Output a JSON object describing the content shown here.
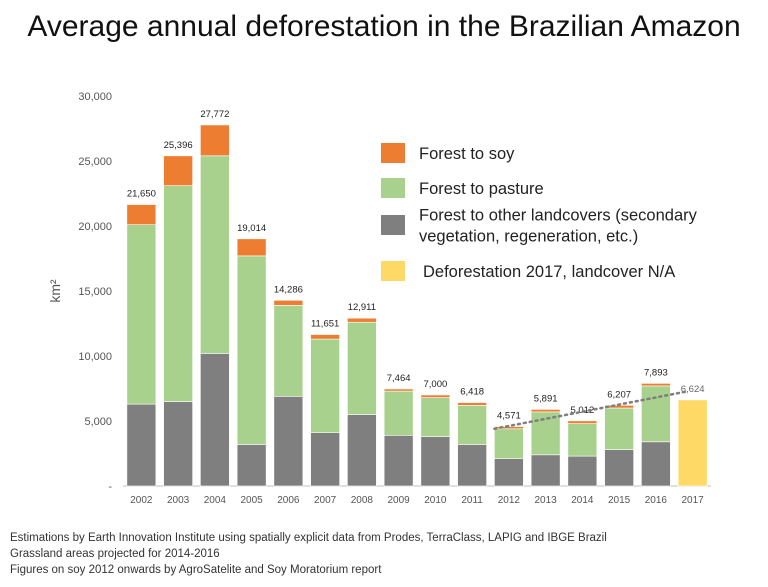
{
  "title": "Average annual deforestation in the Brazilian Amazon",
  "footnotes": [
    "Estimations by Earth Innovation Institute using spatially explicit data from Prodes, TerraClass, LAPIG and IBGE Brazil",
    "Grassland areas projected for 2014-2016",
    "Figures on soy 2012 onwards by AgroSatelite and Soy Moratorium report"
  ],
  "colors": {
    "soy": "#ed7d31",
    "pasture": "#a9d18e",
    "other": "#7f7f7f",
    "na": "#ffd966",
    "trend": "#7f7f7f",
    "axis": "#bfbfbf"
  },
  "chart_data": {
    "type": "bar",
    "stacked": true,
    "ylabel": "km²",
    "ylim": [
      0,
      30000
    ],
    "y_ticks": [
      0,
      5000,
      10000,
      15000,
      20000,
      25000,
      30000
    ],
    "y_tick_labels": [
      "-",
      "5,000",
      "10,000",
      "15,000",
      "20,000",
      "25,000",
      "30,000"
    ],
    "categories": [
      "2002",
      "2003",
      "2004",
      "2005",
      "2006",
      "2007",
      "2008",
      "2009",
      "2010",
      "2011",
      "2012",
      "2013",
      "2014",
      "2015",
      "2016",
      "2017"
    ],
    "series": [
      {
        "name": "Forest to other landcovers (secondary vegetation, regeneration, etc.)",
        "key": "other",
        "values": [
          6300,
          6500,
          10200,
          3200,
          6900,
          4100,
          5500,
          3900,
          3800,
          3200,
          2100,
          2400,
          2300,
          2800,
          3400,
          0
        ]
      },
      {
        "name": "Forest to pasture",
        "key": "pasture",
        "values": [
          13800,
          16600,
          15200,
          14500,
          7000,
          7200,
          7100,
          3400,
          3000,
          3000,
          2300,
          3300,
          2500,
          3200,
          4300,
          0
        ]
      },
      {
        "name": "Forest to soy",
        "key": "soy",
        "values": [
          1550,
          2296,
          2372,
          1314,
          386,
          351,
          311,
          164,
          200,
          218,
          171,
          191,
          212,
          207,
          193,
          0
        ]
      },
      {
        "name": "Deforestation 2017, landcover N/A",
        "key": "na",
        "values": [
          0,
          0,
          0,
          0,
          0,
          0,
          0,
          0,
          0,
          0,
          0,
          0,
          0,
          0,
          0,
          6624
        ]
      }
    ],
    "totals": [
      21650,
      25396,
      27772,
      19014,
      14286,
      11651,
      12911,
      7464,
      7000,
      6418,
      4571,
      5891,
      5012,
      6207,
      7893,
      6624
    ],
    "total_labels": [
      "21,650",
      "25,396",
      "27,772",
      "19,014",
      "14,286",
      "11,651",
      "12,911",
      "7,464",
      "7,000",
      "6,418",
      "4,571",
      "5,891",
      "5,012",
      "6,207",
      "7,893",
      "6,624"
    ],
    "trendline": {
      "from_category": "2012",
      "to_category": "2017",
      "from_value": 4400,
      "to_value": 7300,
      "style": "dotted"
    },
    "legend": {
      "placement": "top-right",
      "items": [
        {
          "key": "soy",
          "label_lines": [
            "Forest to soy"
          ]
        },
        {
          "key": "pasture",
          "label_lines": [
            "Forest to pasture"
          ]
        },
        {
          "key": "other",
          "label_lines": [
            "Forest to other landcovers (secondary",
            "vegetation, regeneration, etc.)"
          ]
        },
        {
          "key": "na",
          "label_lines": [
            "Deforestation 2017, landcover N/A"
          ]
        }
      ]
    },
    "grid": false
  }
}
